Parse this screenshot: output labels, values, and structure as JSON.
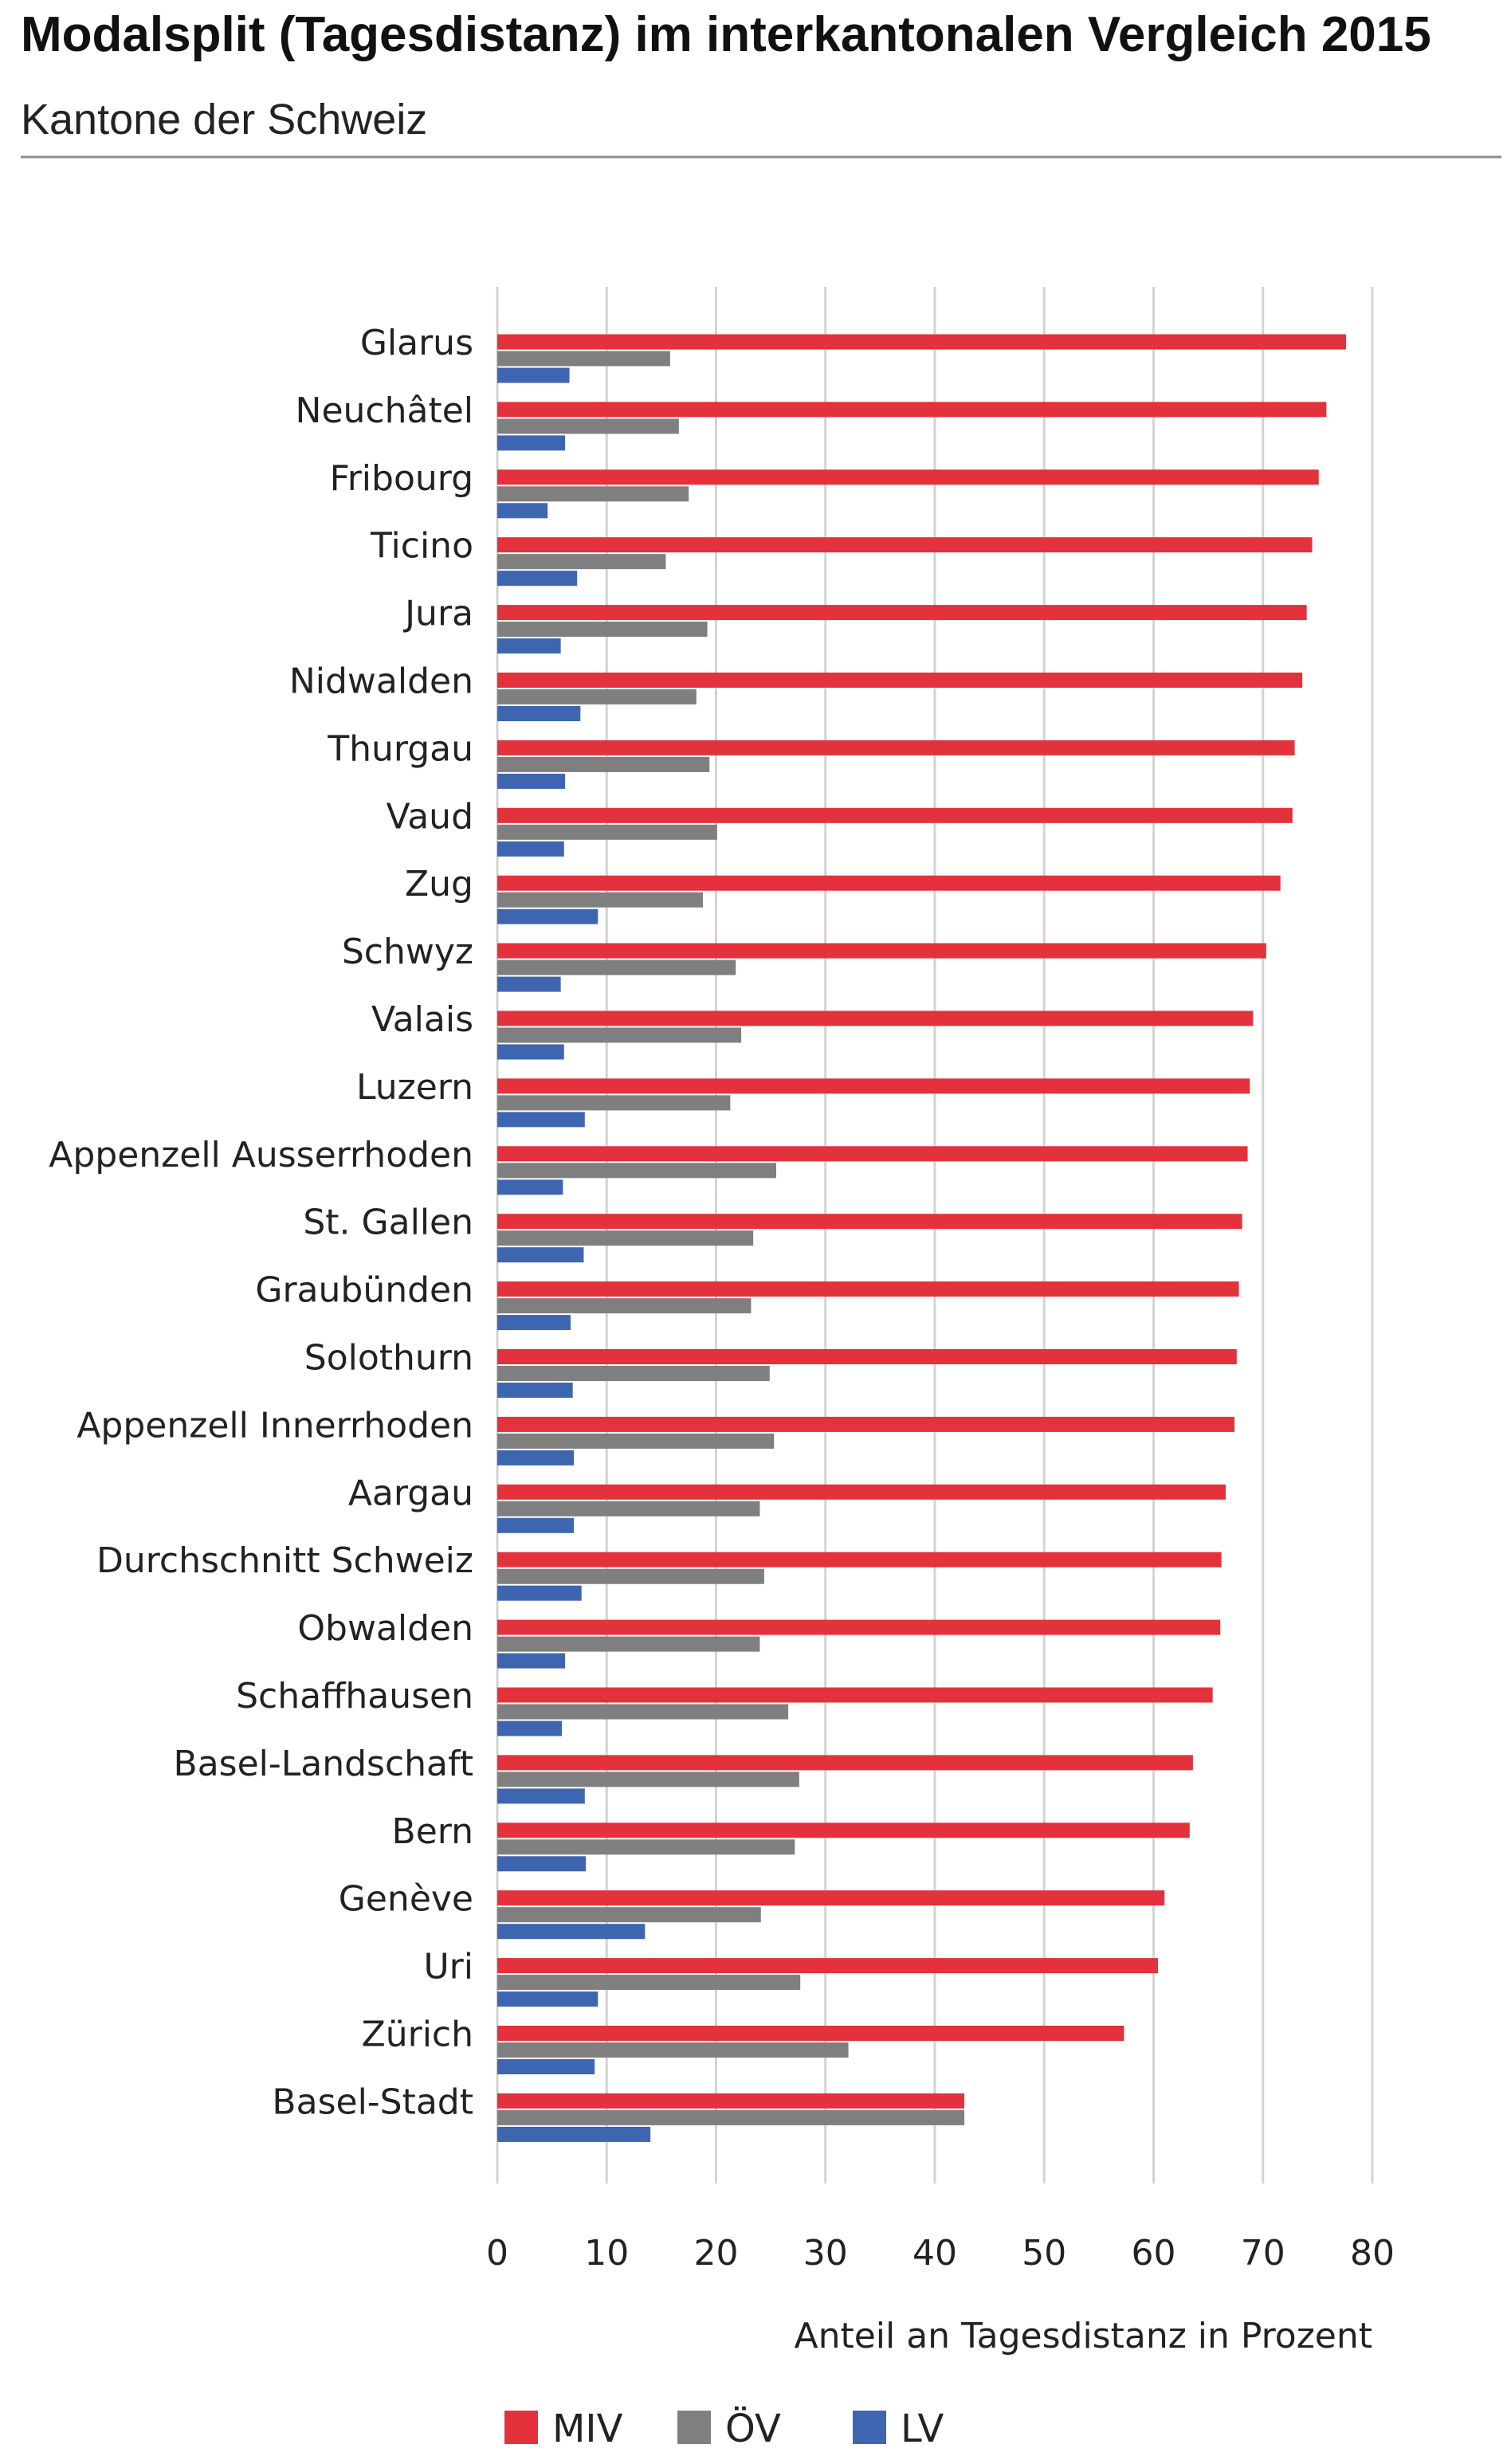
{
  "chart_data": {
    "type": "bar",
    "orientation": "horizontal",
    "title": "Modalsplit (Tagesdistanz) im interkantonalen Vergleich 2015",
    "subtitle": "Kantone der Schweiz",
    "xlabel": "Anteil an Tagesdistanz in Prozent",
    "ylabel": "",
    "xlim": [
      0,
      80
    ],
    "xticks": [
      "0",
      "10",
      "20",
      "30",
      "40",
      "50",
      "60",
      "70",
      "80"
    ],
    "grid": "vertical",
    "legend_position": "bottom",
    "categories": [
      "Glarus",
      "Neuchâtel",
      "Fribourg",
      "Ticino",
      "Jura",
      "Nidwalden",
      "Thurgau",
      "Vaud",
      "Zug",
      "Schwyz",
      "Valais",
      "Luzern",
      "Appenzell Ausserrhoden",
      "St. Gallen",
      "Graubünden",
      "Solothurn",
      "Appenzell Innerrhoden",
      "Aargau",
      "Durchschnitt Schweiz",
      "Obwalden",
      "Schaffhausen",
      "Basel-Landschaft",
      "Bern",
      "Genève",
      "Uri",
      "Zürich",
      "Basel-Stadt"
    ],
    "series": [
      {
        "name": "MIV",
        "color": "#e3323b",
        "values": [
          77.6,
          75.8,
          75.1,
          74.5,
          74.0,
          73.6,
          72.9,
          72.7,
          71.6,
          70.3,
          69.1,
          68.8,
          68.6,
          68.1,
          67.8,
          67.6,
          67.4,
          66.6,
          66.2,
          66.1,
          65.4,
          63.6,
          63.3,
          61.0,
          60.4,
          57.3,
          42.7
        ]
      },
      {
        "name": "ÖV",
        "color": "#7f7f7f",
        "values": [
          15.8,
          16.6,
          17.5,
          15.4,
          19.2,
          18.2,
          19.4,
          20.1,
          18.8,
          21.8,
          22.3,
          21.3,
          25.5,
          23.4,
          23.2,
          24.9,
          25.3,
          24.0,
          24.4,
          24.0,
          26.6,
          27.6,
          27.2,
          24.1,
          27.7,
          32.1,
          42.7
        ]
      },
      {
        "name": "LV",
        "color": "#3e66b0",
        "values": [
          6.6,
          6.2,
          4.6,
          7.3,
          5.8,
          7.6,
          6.2,
          6.1,
          9.2,
          5.8,
          6.1,
          8.0,
          6.0,
          7.9,
          6.7,
          6.9,
          7.0,
          7.0,
          7.7,
          6.2,
          5.9,
          8.0,
          8.1,
          13.5,
          9.2,
          8.9,
          14.0
        ]
      }
    ]
  }
}
